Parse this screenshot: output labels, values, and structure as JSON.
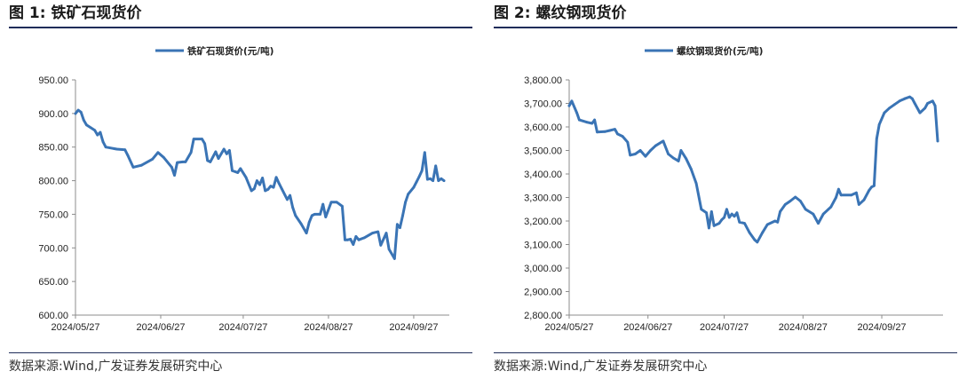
{
  "panels": [
    {
      "figure_label": "图 1:",
      "figure_title": "铁矿石现货价",
      "source": "数据来源:Wind,广发证券发展研究中心"
    },
    {
      "figure_label": "图 2:",
      "figure_title": "螺纹钢现货价",
      "source": "数据来源:Wind,广发证券发展研究中心"
    }
  ],
  "chart_data": [
    {
      "type": "line",
      "title": "",
      "xlabel": "",
      "ylabel": "",
      "ylim": [
        600,
        950
      ],
      "y_ticks": [
        "950.00",
        "900.00",
        "850.00",
        "800.00",
        "750.00",
        "700.00",
        "650.00",
        "600.00"
      ],
      "x_ticks": [
        "2024/05/27",
        "2024/06/27",
        "2024/07/27",
        "2024/08/27",
        "2024/09/27"
      ],
      "x_range": [
        "2024/05/27",
        "2024/10/08"
      ],
      "grid": false,
      "legend_position": "top-center",
      "color": "#3a74b5",
      "series": [
        {
          "name": "铁矿石现货价(元/吨)",
          "points": [
            [
              "2024/05/27",
              900
            ],
            [
              "2024/05/28",
              905
            ],
            [
              "2024/05/29",
              902
            ],
            [
              "2024/05/30",
              890
            ],
            [
              "2024/05/31",
              883
            ],
            [
              "2024/06/03",
              875
            ],
            [
              "2024/06/04",
              868
            ],
            [
              "2024/06/05",
              872
            ],
            [
              "2024/06/06",
              858
            ],
            [
              "2024/06/07",
              850
            ],
            [
              "2024/06/11",
              847
            ],
            [
              "2024/06/14",
              846
            ],
            [
              "2024/06/15",
              838
            ],
            [
              "2024/06/17",
              820
            ],
            [
              "2024/06/20",
              823
            ],
            [
              "2024/06/24",
              832
            ],
            [
              "2024/06/26",
              842
            ],
            [
              "2024/06/28",
              835
            ],
            [
              "2024/07/01",
              820
            ],
            [
              "2024/07/02",
              808
            ],
            [
              "2024/07/03",
              827
            ],
            [
              "2024/07/05",
              828
            ],
            [
              "2024/07/06",
              828
            ],
            [
              "2024/07/08",
              842
            ],
            [
              "2024/07/09",
              862
            ],
            [
              "2024/07/12",
              862
            ],
            [
              "2024/07/13",
              855
            ],
            [
              "2024/07/14",
              830
            ],
            [
              "2024/07/15",
              828
            ],
            [
              "2024/07/17",
              843
            ],
            [
              "2024/07/18",
              833
            ],
            [
              "2024/07/20",
              847
            ],
            [
              "2024/07/21",
              840
            ],
            [
              "2024/07/22",
              845
            ],
            [
              "2024/07/23",
              815
            ],
            [
              "2024/07/25",
              812
            ],
            [
              "2024/07/26",
              818
            ],
            [
              "2024/07/28",
              805
            ],
            [
              "2024/07/30",
              785
            ],
            [
              "2024/07/31",
              788
            ],
            [
              "2024/08/01",
              800
            ],
            [
              "2024/08/02",
              794
            ],
            [
              "2024/08/03",
              804
            ],
            [
              "2024/08/04",
              785
            ],
            [
              "2024/08/05",
              787
            ],
            [
              "2024/08/06",
              792
            ],
            [
              "2024/08/07",
              790
            ],
            [
              "2024/08/08",
              805
            ],
            [
              "2024/08/09",
              796
            ],
            [
              "2024/08/10",
              788
            ],
            [
              "2024/08/12",
              772
            ],
            [
              "2024/08/13",
              778
            ],
            [
              "2024/08/14",
              760
            ],
            [
              "2024/08/15",
              748
            ],
            [
              "2024/08/17",
              736
            ],
            [
              "2024/08/19",
              722
            ],
            [
              "2024/08/20",
              738
            ],
            [
              "2024/08/21",
              748
            ],
            [
              "2024/08/22",
              750
            ],
            [
              "2024/08/24",
              750
            ],
            [
              "2024/08/25",
              765
            ],
            [
              "2024/08/26",
              746
            ],
            [
              "2024/08/28",
              768
            ],
            [
              "2024/08/30",
              768
            ],
            [
              "2024/09/01",
              762
            ],
            [
              "2024/09/02",
              712
            ],
            [
              "2024/09/03",
              712
            ],
            [
              "2024/09/04",
              713
            ],
            [
              "2024/09/05",
              705
            ],
            [
              "2024/09/06",
              717
            ],
            [
              "2024/09/07",
              712
            ],
            [
              "2024/09/09",
              715
            ],
            [
              "2024/09/12",
              722
            ],
            [
              "2024/09/14",
              724
            ],
            [
              "2024/09/15",
              704
            ],
            [
              "2024/09/17",
              722
            ],
            [
              "2024/09/18",
              698
            ],
            [
              "2024/09/20",
              684
            ],
            [
              "2024/09/21",
              735
            ],
            [
              "2024/09/22",
              730
            ],
            [
              "2024/09/23",
              748
            ],
            [
              "2024/09/24",
              768
            ],
            [
              "2024/09/25",
              780
            ],
            [
              "2024/09/27",
              790
            ],
            [
              "2024/09/28",
              798
            ],
            [
              "2024/09/29",
              806
            ],
            [
              "2024/09/30",
              815
            ],
            [
              "2024/10/01",
              842
            ],
            [
              "2024/10/02",
              802
            ],
            [
              "2024/10/03",
              803
            ],
            [
              "2024/10/04",
              800
            ],
            [
              "2024/10/05",
              822
            ],
            [
              "2024/10/06",
              800
            ],
            [
              "2024/10/07",
              803
            ],
            [
              "2024/10/08",
              800
            ]
          ]
        }
      ]
    },
    {
      "type": "line",
      "title": "",
      "xlabel": "",
      "ylabel": "",
      "ylim": [
        2800,
        3800
      ],
      "y_ticks": [
        "3,800.00",
        "3,700.00",
        "3,600.00",
        "3,500.00",
        "3,400.00",
        "3,300.00",
        "3,200.00",
        "3,100.00",
        "3,000.00",
        "2,900.00",
        "2,800.00"
      ],
      "x_ticks": [
        "2024/05/27",
        "2024/06/27",
        "2024/07/27",
        "2024/08/27",
        "2024/09/27"
      ],
      "x_range": [
        "2024/05/27",
        "2024/10/19"
      ],
      "grid": false,
      "legend_position": "top-center",
      "color": "#3a74b5",
      "series": [
        {
          "name": "螺纹钢现货价(元/吨)",
          "points": [
            [
              "2024/05/27",
              3690
            ],
            [
              "2024/05/28",
              3710
            ],
            [
              "2024/05/30",
              3660
            ],
            [
              "2024/05/31",
              3630
            ],
            [
              "2024/06/03",
              3620
            ],
            [
              "2024/06/05",
              3615
            ],
            [
              "2024/06/06",
              3630
            ],
            [
              "2024/06/07",
              3578
            ],
            [
              "2024/06/10",
              3580
            ],
            [
              "2024/06/12",
              3585
            ],
            [
              "2024/06/14",
              3590
            ],
            [
              "2024/06/15",
              3570
            ],
            [
              "2024/06/17",
              3560
            ],
            [
              "2024/06/19",
              3535
            ],
            [
              "2024/06/20",
              3480
            ],
            [
              "2024/06/22",
              3485
            ],
            [
              "2024/06/24",
              3500
            ],
            [
              "2024/06/26",
              3475
            ],
            [
              "2024/06/28",
              3500
            ],
            [
              "2024/06/30",
              3520
            ],
            [
              "2024/07/03",
              3540
            ],
            [
              "2024/07/05",
              3485
            ],
            [
              "2024/07/07",
              3468
            ],
            [
              "2024/07/09",
              3455
            ],
            [
              "2024/07/10",
              3500
            ],
            [
              "2024/07/12",
              3465
            ],
            [
              "2024/07/14",
              3420
            ],
            [
              "2024/07/16",
              3360
            ],
            [
              "2024/07/18",
              3250
            ],
            [
              "2024/07/20",
              3235
            ],
            [
              "2024/07/21",
              3170
            ],
            [
              "2024/07/22",
              3240
            ],
            [
              "2024/07/23",
              3180
            ],
            [
              "2024/07/25",
              3190
            ],
            [
              "2024/07/26",
              3205
            ],
            [
              "2024/07/27",
              3215
            ],
            [
              "2024/07/28",
              3250
            ],
            [
              "2024/07/29",
              3215
            ],
            [
              "2024/07/30",
              3230
            ],
            [
              "2024/07/31",
              3220
            ],
            [
              "2024/08/01",
              3235
            ],
            [
              "2024/08/02",
              3195
            ],
            [
              "2024/08/04",
              3190
            ],
            [
              "2024/08/06",
              3150
            ],
            [
              "2024/08/08",
              3120
            ],
            [
              "2024/08/09",
              3110
            ],
            [
              "2024/08/11",
              3150
            ],
            [
              "2024/08/13",
              3185
            ],
            [
              "2024/08/16",
              3200
            ],
            [
              "2024/08/17",
              3195
            ],
            [
              "2024/08/18",
              3240
            ],
            [
              "2024/08/20",
              3270
            ],
            [
              "2024/08/22",
              3285
            ],
            [
              "2024/08/24",
              3302
            ],
            [
              "2024/08/26",
              3285
            ],
            [
              "2024/08/28",
              3250
            ],
            [
              "2024/08/31",
              3230
            ],
            [
              "2024/09/02",
              3190
            ],
            [
              "2024/09/04",
              3230
            ],
            [
              "2024/09/06",
              3250
            ],
            [
              "2024/09/07",
              3260
            ],
            [
              "2024/09/09",
              3300
            ],
            [
              "2024/09/10",
              3335
            ],
            [
              "2024/09/11",
              3310
            ],
            [
              "2024/09/15",
              3310
            ],
            [
              "2024/09/17",
              3320
            ],
            [
              "2024/09/18",
              3270
            ],
            [
              "2024/09/20",
              3290
            ],
            [
              "2024/09/22",
              3330
            ],
            [
              "2024/09/23",
              3345
            ],
            [
              "2024/09/24",
              3350
            ],
            [
              "2024/09/25",
              3550
            ],
            [
              "2024/09/26",
              3610
            ],
            [
              "2024/09/28",
              3660
            ],
            [
              "2024/09/30",
              3680
            ],
            [
              "2024/10/02",
              3695
            ],
            [
              "2024/10/04",
              3710
            ],
            [
              "2024/10/06",
              3720
            ],
            [
              "2024/10/08",
              3728
            ],
            [
              "2024/10/09",
              3720
            ],
            [
              "2024/10/10",
              3700
            ],
            [
              "2024/10/12",
              3660
            ],
            [
              "2024/10/14",
              3680
            ],
            [
              "2024/10/15",
              3700
            ],
            [
              "2024/10/17",
              3710
            ],
            [
              "2024/10/18",
              3690
            ],
            [
              "2024/10/19",
              3540
            ]
          ]
        }
      ]
    }
  ]
}
